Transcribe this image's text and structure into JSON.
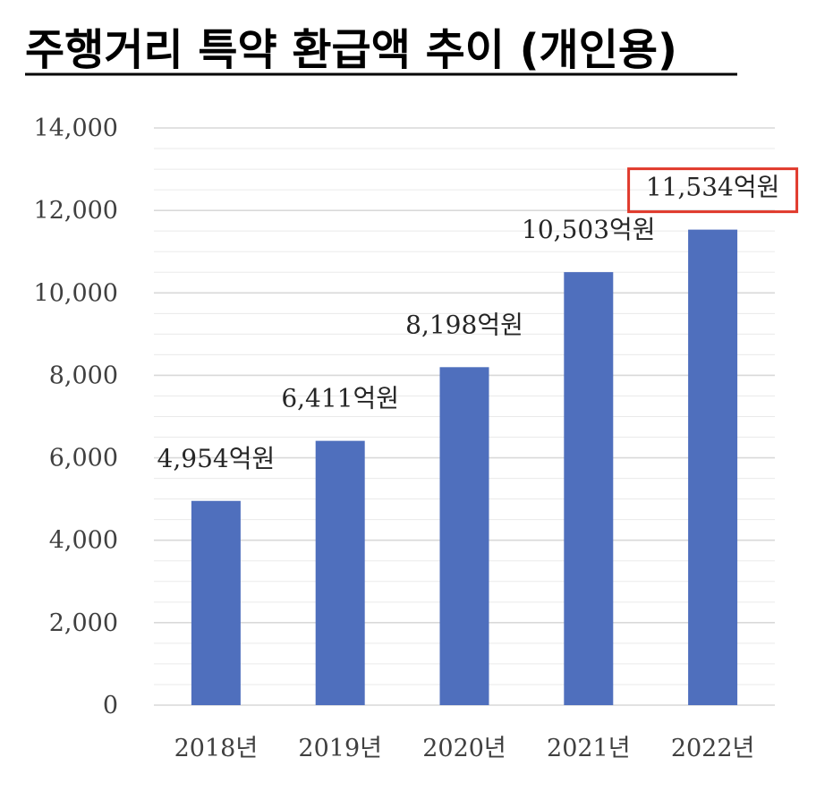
{
  "chart_data": {
    "type": "bar",
    "title": "주행거리 특약 환급액 추이 (개인용)",
    "categories": [
      "2018년",
      "2019년",
      "2020년",
      "2021년",
      "2022년"
    ],
    "values": [
      4954,
      6411,
      8198,
      10503,
      11534
    ],
    "data_labels": [
      "4,954억원",
      "6,411억원",
      "8,198억원",
      "10,503억원",
      "11,534억원"
    ],
    "ylim": [
      0,
      14000
    ],
    "yticks": [
      "0",
      "2,000",
      "4,000",
      "6,000",
      "8,000",
      "10,000",
      "12,000",
      "14,000"
    ],
    "grid": true,
    "highlight_index": 4,
    "colors": {
      "bar": "#4f6fbd",
      "grid": "#d9d9d9",
      "highlight_box": "#e0392b",
      "title_underline": "#000000"
    }
  }
}
